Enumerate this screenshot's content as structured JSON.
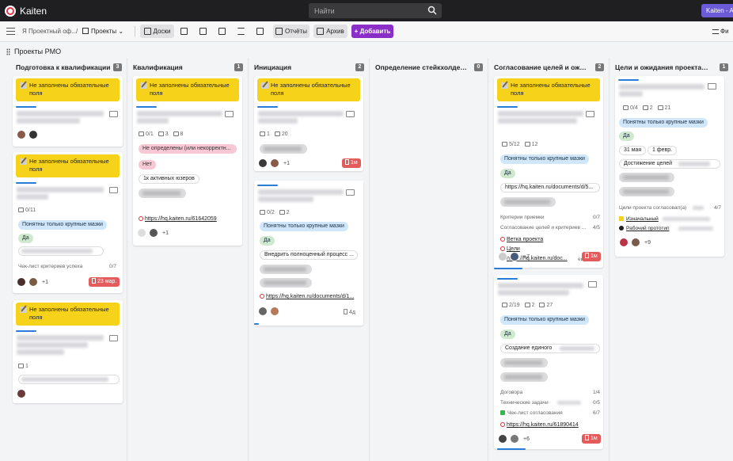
{
  "app": {
    "title": "Kaiten",
    "space_button": "Kaiten - A"
  },
  "search": {
    "placeholder": "Найти"
  },
  "toolbar": {
    "breadcrumb_space": "Я Проектный оф...",
    "breadcrumb_sep": "/",
    "breadcrumb_projects": "Проекты",
    "boards": "Доски",
    "reports": "Отчёты",
    "archive": "Архив",
    "add": "+ Добавить",
    "filter": "Фи"
  },
  "board": {
    "title": "Проекты PMO"
  },
  "columns": [
    {
      "title": "Подготовка к квалификации",
      "count": "3"
    },
    {
      "title": "Квалификация",
      "count": "1"
    },
    {
      "title": "Инициация",
      "count": "2"
    },
    {
      "title": "Определение стейкхолдеров и ...",
      "count": "0"
    },
    {
      "title": "Согласование целей и ожидан...",
      "count": "2"
    },
    {
      "title": "Цели и ожидания проекта утве...",
      "count": "1"
    }
  ],
  "common": {
    "warn": "Не заполнены обязательные поля",
    "big_only": "Понятны только крупные мазки",
    "yes": "Да"
  },
  "cards": {
    "c1a": {
      "plus": ""
    },
    "c1b": {
      "subtasks": "0/11",
      "checklist": "Чек-лист критериев успеха",
      "checklist_count": "0/7",
      "plus": "+1",
      "due": "23 мар."
    },
    "c1c": {
      "comments": "1"
    },
    "c2a": {
      "subtasks": "0/1",
      "comments": "3",
      "files": "8",
      "tag_undefined": "Не определены (или некорректн...",
      "tag_no": "Нет",
      "tag_users": "1к активных юзеров",
      "link": "https://hq.kaiten.ru/61642059",
      "plus": "+1"
    },
    "c3a": {
      "comments": "1",
      "files": "20",
      "plus": "+1",
      "due": "1м"
    },
    "c3b": {
      "subtasks": "0/2",
      "files": "2",
      "tag_process": "Внедрить полноценный процесс ...",
      "link": "https://hq.kaiten.ru/documents/d/1...",
      "age": "4д"
    },
    "c5a": {
      "subtasks": "5/12",
      "files": "12",
      "link_doc": "https://hq.kaiten.ru/documents/d/5...",
      "crit": "Критерии приемки",
      "crit_count": "0/7",
      "approve": "Согласование целей и критериев ...",
      "approve_count": "4/5",
      "l1": "Ветка проекта",
      "l2": "Цели",
      "l3": "https://hq.kaiten.ru/doc...",
      "l3_more": "ещё 1",
      "plus": "+7",
      "due": "1м"
    },
    "c5b": {
      "subtasks": "2/19",
      "comments": "2",
      "files": "27",
      "tag_single": "Создание единого",
      "contract": "Договора",
      "contract_count": "1/4",
      "tech": "Технические задачи",
      "tech_count": "0/5",
      "checklist": "Чек-лист согласования",
      "checklist_count": "6/7",
      "link": "https://hq.kaiten.ru/61890414",
      "plus": "+6",
      "due": "1м"
    },
    "c6a": {
      "subtasks": "0/4",
      "comments": "2",
      "files": "21",
      "date1": "31 мая",
      "date2": "1 февр.",
      "goal": "Достижение целей",
      "agreed": "Цели проекта согласовал(а)",
      "agreed_count": "4/7",
      "l1": "Изначальный",
      "l2": "Рабочий прототип",
      "plus": "+9"
    }
  }
}
